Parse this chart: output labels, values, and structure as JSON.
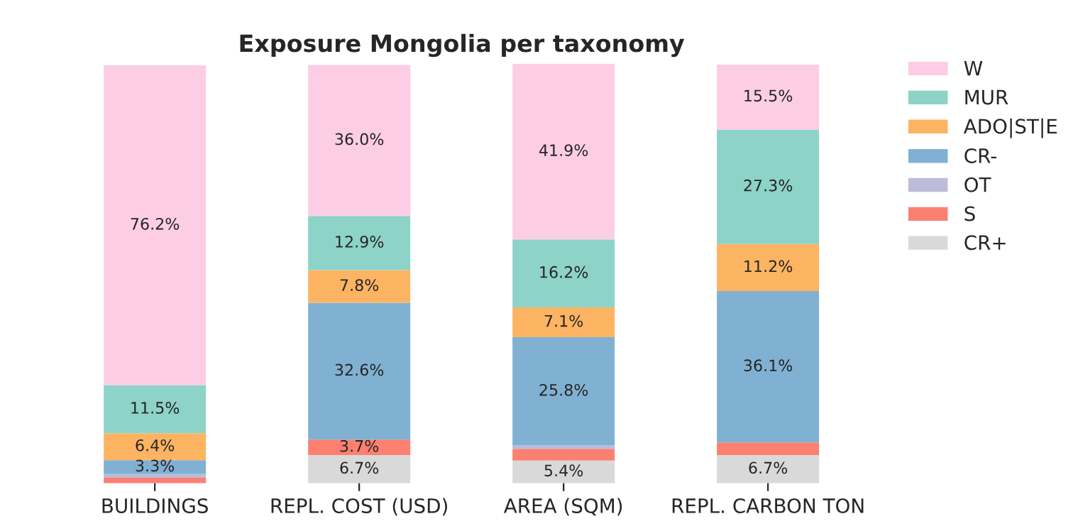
{
  "chart_data": {
    "type": "bar",
    "stacked": true,
    "title": "Exposure Mongolia per taxonomy",
    "legend": "top right",
    "categories": [
      "BUILDINGS",
      "REPL. COST (USD)",
      "AREA (SQM)",
      "REPL. CARBON TON"
    ],
    "series": [
      {
        "name": "CR+",
        "color": "#d9d9d9",
        "values": [
          null,
          6.7,
          5.4,
          6.7
        ],
        "value_labels": [
          null,
          "6.7%",
          "5.4%",
          "6.7%"
        ]
      },
      {
        "name": "S",
        "color": "#fb8072",
        "values": [
          1.3,
          3.7,
          2.8,
          3.0
        ],
        "value_labels": [
          null,
          "3.7%",
          null,
          null
        ]
      },
      {
        "name": "OT",
        "color": "#bebada",
        "values": [
          0.9,
          null,
          0.8,
          null
        ],
        "value_labels": [
          null,
          null,
          null,
          null
        ]
      },
      {
        "name": "CR-",
        "color": "#80b1d3",
        "values": [
          3.3,
          32.6,
          25.8,
          36.1
        ],
        "value_labels": [
          "3.3%",
          "32.6%",
          "25.8%",
          "36.1%"
        ]
      },
      {
        "name": "ADO|ST|E",
        "color": "#fdb462",
        "values": [
          6.4,
          7.8,
          7.1,
          11.2
        ],
        "value_labels": [
          "6.4%",
          "7.8%",
          "7.1%",
          "11.2%"
        ]
      },
      {
        "name": "MUR",
        "color": "#8dd3c7",
        "values": [
          11.5,
          12.9,
          16.2,
          27.3
        ],
        "value_labels": [
          "11.5%",
          "12.9%",
          "16.2%",
          "27.3%"
        ]
      },
      {
        "name": "W",
        "color": "#fccde5",
        "values": [
          76.2,
          36.0,
          41.9,
          15.5
        ],
        "value_labels": [
          "76.2%",
          "36.0%",
          "41.9%",
          "15.5%"
        ]
      }
    ]
  }
}
